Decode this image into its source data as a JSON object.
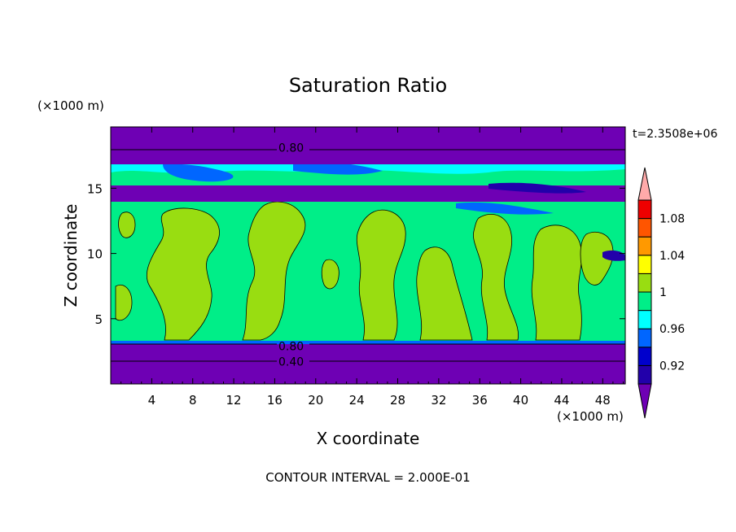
{
  "chart_data": {
    "type": "heatmap",
    "title": "Saturation Ratio",
    "xlabel": "X coordinate",
    "ylabel": "Z coordinate",
    "x_unit": "(×1000 m)",
    "y_unit": "(×1000 m)",
    "time_label": "t=2.3508e+06",
    "footer": "CONTOUR INTERVAL = 2.000E-01",
    "xlim": [
      0,
      50.2
    ],
    "ylim": [
      0,
      19.7
    ],
    "xticks": [
      4,
      8,
      12,
      16,
      20,
      24,
      28,
      32,
      36,
      40,
      44,
      48
    ],
    "yticks": [
      5,
      10,
      15
    ],
    "contour_labels": [
      {
        "text": "0.80",
        "x": 17.6,
        "z": 18.1
      },
      {
        "text": "0.80",
        "x": 17.6,
        "z": 2.9
      },
      {
        "text": "0.40",
        "x": 17.6,
        "z": 1.7
      }
    ],
    "bands": [
      {
        "z_min": 0.0,
        "z_max": 3.1,
        "value_class": "below-0.92"
      },
      {
        "z_min": 3.1,
        "z_max": 3.3,
        "value_class": "0.96-0.98"
      },
      {
        "z_min": 3.3,
        "z_max": 14.1,
        "value_class": "0.98-1.00 with 1.00-1.02 patches"
      },
      {
        "z_min": 14.1,
        "z_max": 15.1,
        "value_class": "below-0.92"
      },
      {
        "z_min": 15.1,
        "z_max": 17.3,
        "value_class": "0.94-1.00 mixed"
      },
      {
        "z_min": 17.3,
        "z_max": 19.7,
        "value_class": "below-0.92"
      }
    ],
    "colorbar": {
      "tick_labels": [
        "1.08",
        "1.04",
        "1",
        "0.96",
        "0.92"
      ],
      "levels": [
        0.92,
        0.94,
        0.96,
        0.98,
        1.0,
        1.02,
        1.04,
        1.06,
        1.08
      ],
      "colors": [
        "#6e00b4",
        "#2200aa",
        "#0000cc",
        "#0066ff",
        "#00ffff",
        "#00ee88",
        "#99dd11",
        "#ffff00",
        "#ff9900",
        "#ff5500",
        "#ee0000",
        "#ffaaaa"
      ]
    }
  }
}
